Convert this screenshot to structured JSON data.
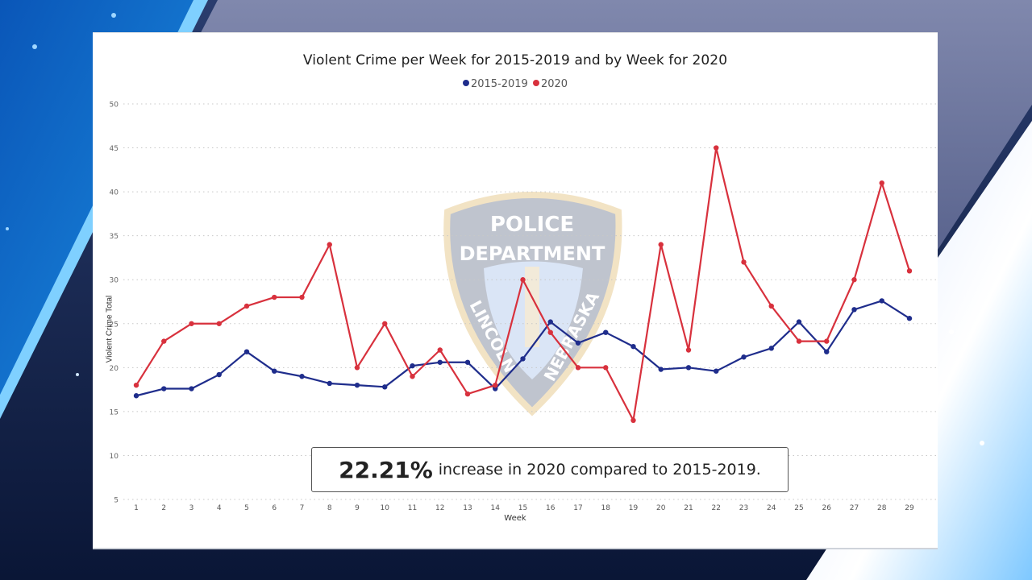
{
  "chart_data": {
    "type": "line",
    "title": "Violent Crime per Week for 2015-2019 and by Week for 2020",
    "xlabel": "Week",
    "ylabel": "Violent Crime Total",
    "x": [
      1,
      2,
      3,
      4,
      5,
      6,
      7,
      8,
      9,
      10,
      11,
      12,
      13,
      14,
      15,
      16,
      17,
      18,
      19,
      20,
      21,
      22,
      23,
      24,
      25,
      26,
      27,
      28,
      29
    ],
    "yticks": [
      5,
      10,
      15,
      20,
      25,
      30,
      35,
      40,
      45,
      50
    ],
    "ylim": [
      5,
      50
    ],
    "grid": true,
    "legend_position": "top-center",
    "series": [
      {
        "name": "2015-2019",
        "color": "#1f2d8c",
        "values": [
          16.8,
          17.6,
          17.6,
          19.2,
          21.8,
          19.6,
          19.0,
          18.2,
          18.0,
          17.8,
          20.2,
          20.6,
          20.6,
          17.6,
          21.0,
          25.2,
          22.8,
          24.0,
          22.4,
          19.8,
          20.0,
          19.6,
          21.2,
          22.2,
          25.2,
          21.8,
          26.6,
          27.6,
          25.6
        ]
      },
      {
        "name": "2020",
        "color": "#d8313d",
        "values": [
          18,
          23,
          25,
          25,
          27,
          28,
          28,
          34,
          20,
          25,
          19,
          22,
          17,
          18,
          30,
          24,
          20,
          20,
          14,
          34,
          22,
          45,
          32,
          27,
          23,
          23,
          30,
          41,
          31
        ]
      }
    ],
    "annotations": [
      {
        "text": "22.21% increase in 2020 compared to 2015-2019."
      }
    ]
  },
  "legend": {
    "items": [
      {
        "label": "2015-2019",
        "color": "#1f2d8c"
      },
      {
        "label": "2020",
        "color": "#d8313d"
      }
    ]
  },
  "callout": {
    "percent": "22.21%",
    "text": "increase in 2020 compared to 2015-2019."
  },
  "watermark": {
    "line1": "POLICE",
    "line2": "DEPARTMENT",
    "left": "LINCOLN",
    "right": "NEBRASKA"
  }
}
